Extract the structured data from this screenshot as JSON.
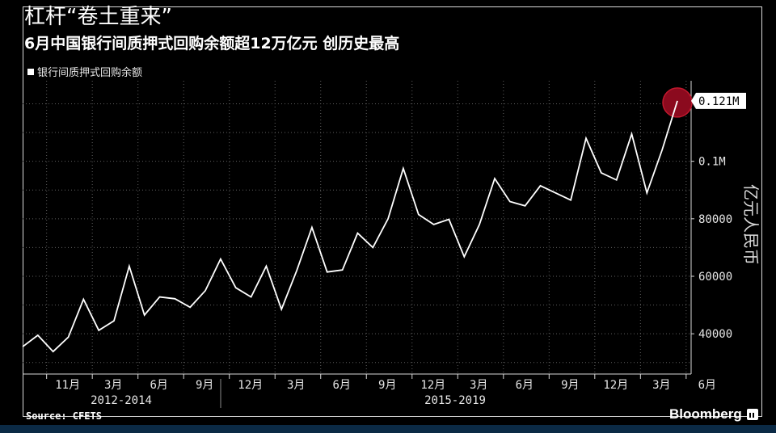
{
  "title": "杠杆“卷土重来”",
  "subtitle": "6月中国银行间质押式回购余额超12万亿元 创历史最高",
  "source": "Source: CFETS",
  "brand": "Bloomberg",
  "colors": {
    "background": "#000000",
    "line": "#ffffff",
    "highlight": "#8b0a1e",
    "grid": "#5a5a5a"
  },
  "chart_data": {
    "type": "line",
    "series": [
      {
        "name": "银行间质押式回购余额",
        "values": [
          35500,
          39500,
          33800,
          38800,
          52000,
          41200,
          44500,
          63500,
          46500,
          52800,
          52200,
          49200,
          55000,
          66000,
          56000,
          52800,
          63500,
          48500,
          62000,
          77000,
          61500,
          62200,
          75000,
          70000,
          80000,
          97500,
          81500,
          78000,
          79800,
          66800,
          78000,
          94000,
          86000,
          84500,
          91500,
          89000,
          86500,
          108000,
          96000,
          93500,
          109500,
          89000,
          104000,
          121000
        ]
      }
    ],
    "x_tick_labels": [
      "11月",
      "3月",
      "6月",
      "9月",
      "12月",
      "3月",
      "6月",
      "9月",
      "12月",
      "3月",
      "6月",
      "9月",
      "12月",
      "3月",
      "6月"
    ],
    "x_period_labels": [
      "2012-2014",
      "2015-2019"
    ],
    "y_tick_labels": [
      "40000",
      "60000",
      "80000",
      "0.1M"
    ],
    "y_ticks": [
      40000,
      60000,
      80000,
      100000
    ],
    "ylim": [
      26000,
      128000
    ],
    "ylabel": "亿元人民币",
    "last_value_label": "0.121M",
    "grid": true,
    "legend": "top-left"
  }
}
